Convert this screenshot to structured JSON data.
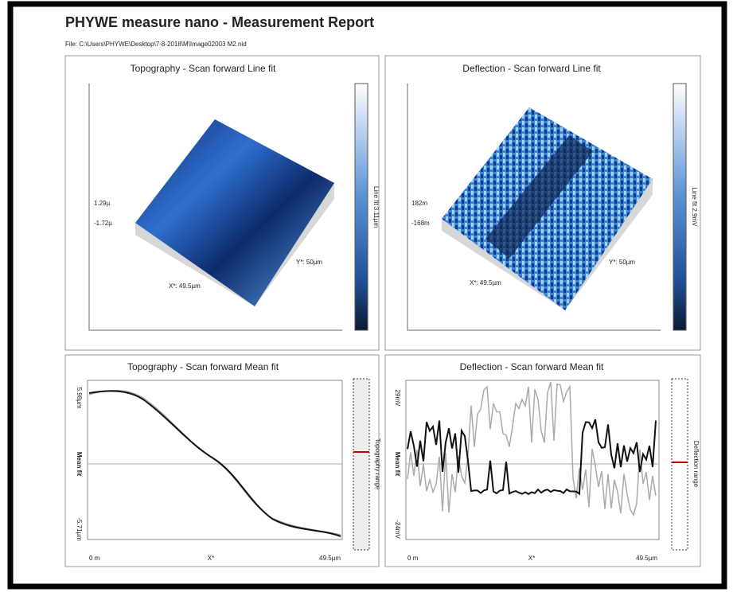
{
  "header": {
    "title": "PHYWE measure nano - Measurement Report",
    "file": "File: C:\\Users\\PHYWE\\Desktop\\7-8-2018\\M\\Image02003    M2.nid"
  },
  "panels": [
    {
      "title": "Topography - Scan forward   Line fit",
      "z_max": "1.29µ",
      "z_min": "-1.72µ",
      "y_axis": "Y*: 50µm",
      "x_axis": "X*: 49.5µm",
      "colorbar": "Line fit 3.11µm"
    },
    {
      "title": "Deflection - Scan forward   Line fit",
      "z_max": "182m",
      "z_min": "-168m",
      "y_axis": "Y*: 50µm",
      "x_axis": "X*: 49.5µm",
      "colorbar": "Line fit 2.9mV"
    },
    {
      "title": "Topography - Scan forward   Mean fit",
      "y_max": "5.98µm",
      "y_label": "Mean fit",
      "y_min": "-5.71µm",
      "x_min": "0 m",
      "x_label": "X*",
      "x_max": "49.5µm",
      "range": "Topography range"
    },
    {
      "title": "Deflection - Scan forward   Mean fit",
      "y_max": "29mV",
      "y_label": "Mean fit",
      "y_min": "-24mV",
      "x_min": "0 m",
      "x_label": "X*",
      "x_max": "49.5µm",
      "range": "Deflection range"
    }
  ]
}
